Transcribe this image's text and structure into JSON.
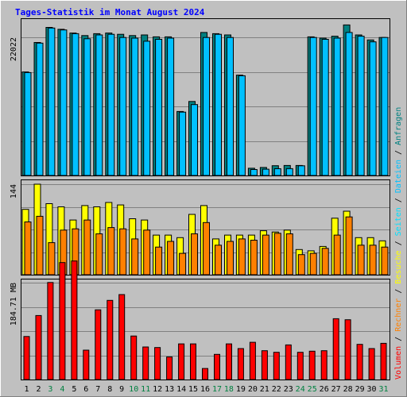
{
  "chart_data": {
    "type": "bar",
    "title": "Tages-Statistik im Monat August 2024",
    "categories": [
      "1",
      "2",
      "3",
      "4",
      "5",
      "6",
      "7",
      "8",
      "9",
      "10",
      "11",
      "12",
      "13",
      "14",
      "15",
      "16",
      "17",
      "18",
      "19",
      "20",
      "21",
      "22",
      "23",
      "24",
      "25",
      "26",
      "27",
      "28",
      "29",
      "30",
      "31"
    ],
    "weekend_categories": [
      "3",
      "4",
      "10",
      "11",
      "17",
      "18",
      "24",
      "25",
      "31"
    ],
    "colors": {
      "background": "#c0c0c0",
      "frame": "#000000",
      "gridline": "#808080",
      "weekend_label": "#008040",
      "weekday_label": "#000000",
      "anfragen": "#008080",
      "dateien": "#00c0ff",
      "seiten": "#00e0ff",
      "besuche": "#ffff00",
      "rechner": "#ff8000",
      "volumen": "#ff0000"
    },
    "panels": [
      {
        "id": "hits",
        "y_tick_label": "22022",
        "y_tick_value": 22022,
        "series": [
          {
            "name": "Anfragen",
            "color_key": "anfragen",
            "values": [
              16500,
              21200,
              23600,
              23300,
              22700,
              22300,
              22600,
              22700,
              22500,
              22300,
              22400,
              22100,
              22100,
              10200,
              11800,
              22800,
              22600,
              22400,
              16000,
              1150,
              1280,
              1560,
              1590,
              1590,
              22100,
              21900,
              22200,
              24000,
              22400,
              21600,
              22000
            ]
          },
          {
            "name": "Dateien",
            "color_key": "dateien",
            "values": [
              16400,
              21100,
              23500,
              23200,
              22600,
              21800,
              22400,
              22500,
              22000,
              21900,
              21400,
              21700,
              21900,
              10100,
              11300,
              22000,
              22500,
              22000,
              15900,
              950,
              1000,
              1080,
              1090,
              1550,
              22000,
              21700,
              21900,
              22800,
              22200,
              21300,
              22000
            ]
          }
        ]
      },
      {
        "id": "visits",
        "y_tick_label": "144",
        "y_tick_value": 144,
        "series": [
          {
            "name": "Besuche",
            "color_key": "besuche",
            "values": [
              104,
              144,
              113,
              108,
              87,
              110,
              108,
              115,
              111,
              89,
              87,
              63,
              63,
              59,
              96,
              110,
              57,
              63,
              63,
              63,
              70,
              68,
              71,
              40,
              38,
              45,
              90,
              101,
              59,
              59,
              54
            ]
          },
          {
            "name": "Rechner",
            "color_key": "rechner",
            "values": [
              84,
              93,
              51,
              71,
              73,
              87,
              65,
              75,
              73,
              57,
              71,
              44,
              53,
              34,
              65,
              83,
              47,
              53,
              57,
              55,
              63,
              66,
              65,
              32,
              34,
              42,
              63,
              92,
              47,
              47,
              44
            ]
          }
        ]
      },
      {
        "id": "volume",
        "y_tick_label": "184.71 MB",
        "y_tick_value": 184.71,
        "series": [
          {
            "name": "Volumen",
            "color_key": "volumen",
            "values": [
              82,
              122,
              185,
              223,
              226,
              56,
              133,
              151,
              162,
              83,
              62,
              61,
              43,
              68,
              68,
              21,
              48,
              68,
              59,
              71,
              55,
              52,
              66,
              52,
              54,
              55,
              116,
              114,
              67,
              59,
              69
            ]
          }
        ]
      }
    ],
    "legend_vertical": [
      {
        "text": "Volumen",
        "color_key": "volumen"
      },
      {
        "text": " / ",
        "color_key": "weekday_label"
      },
      {
        "text": "Rechner",
        "color_key": "rechner"
      },
      {
        "text": " / ",
        "color_key": "weekday_label"
      },
      {
        "text": "Besuche",
        "color_key": "besuche"
      },
      {
        "text": " / ",
        "color_key": "weekday_label"
      },
      {
        "text": "Seiten",
        "color_key": "seiten"
      },
      {
        "text": " / ",
        "color_key": "weekday_label"
      },
      {
        "text": "Dateien",
        "color_key": "dateien"
      },
      {
        "text": " / ",
        "color_key": "weekday_label"
      },
      {
        "text": "Anfragen",
        "color_key": "anfragen"
      }
    ],
    "grid": true
  }
}
